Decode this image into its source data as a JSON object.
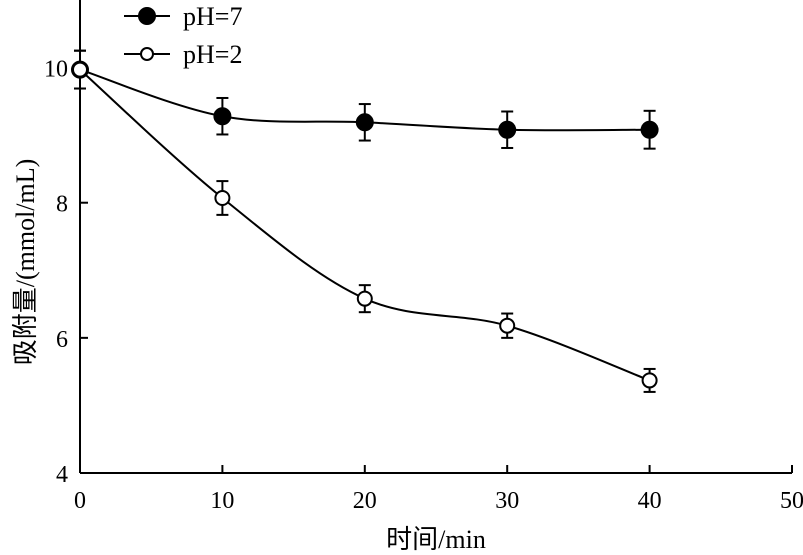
{
  "chart_data": {
    "type": "line",
    "xlabel": "时间/min",
    "ylabel": "吸附量/(mmol/mL)",
    "xlim": [
      0,
      50
    ],
    "ylim": [
      4,
      11
    ],
    "x_ticks": [
      0,
      10,
      20,
      30,
      40,
      50
    ],
    "y_ticks": [
      4,
      6,
      8,
      10
    ],
    "grid": false,
    "legend_position": "top-left",
    "series": [
      {
        "name": "pH=7",
        "marker": "filled-circle",
        "color": "#000000",
        "x": [
          0,
          10,
          20,
          30,
          40
        ],
        "y": [
          9.97,
          9.28,
          9.19,
          9.08,
          9.08
        ],
        "error": [
          0.28,
          0.27,
          0.27,
          0.27,
          0.28
        ]
      },
      {
        "name": "pH=2",
        "marker": "open-circle",
        "color": "#000000",
        "x": [
          0,
          10,
          20,
          30,
          40
        ],
        "y": [
          9.97,
          8.07,
          6.58,
          6.18,
          5.37
        ],
        "error": [
          0.28,
          0.25,
          0.2,
          0.18,
          0.17
        ]
      }
    ]
  }
}
